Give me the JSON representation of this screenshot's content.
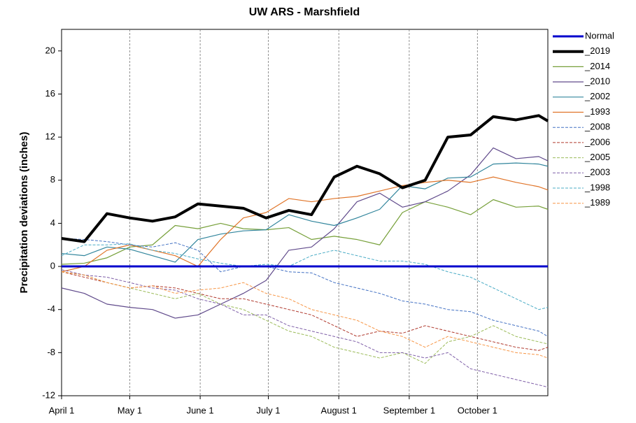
{
  "chart_data": {
    "type": "line",
    "title": "UW ARS - Marshfield",
    "y_label": "Precipitation deviations (inches)",
    "x": [
      0,
      10,
      20,
      30,
      40,
      50,
      60,
      70,
      80,
      90,
      100,
      110,
      120,
      130,
      140,
      150,
      160,
      170,
      180,
      190,
      200,
      210,
      214
    ],
    "xlim": [
      0,
      214
    ],
    "xticks": [
      {
        "value": 0,
        "label": "April 1"
      },
      {
        "value": 30,
        "label": "May 1"
      },
      {
        "value": 61,
        "label": "June 1"
      },
      {
        "value": 91,
        "label": "July 1"
      },
      {
        "value": 122,
        "label": "August 1"
      },
      {
        "value": 153,
        "label": "September 1"
      },
      {
        "value": 183,
        "label": "October 1"
      }
    ],
    "ylim": [
      -12,
      22
    ],
    "yticks": [
      -12,
      -8,
      -4,
      0,
      4,
      8,
      12,
      16,
      20
    ],
    "x_grid": true,
    "legend": "right",
    "series": [
      {
        "name": "Normal",
        "color": "#0000cc",
        "width": 3,
        "dash": false,
        "values": [
          0,
          0,
          0,
          0,
          0,
          0,
          0,
          0,
          0,
          0,
          0,
          0,
          0,
          0,
          0,
          0,
          0,
          0,
          0,
          0,
          0,
          0,
          0
        ]
      },
      {
        "name": "_2019",
        "color": "#000000",
        "width": 4,
        "dash": false,
        "values": [
          2.6,
          2.3,
          4.9,
          4.5,
          4.2,
          4.6,
          5.8,
          5.6,
          5.4,
          4.5,
          5.2,
          4.8,
          8.3,
          9.3,
          8.6,
          7.3,
          8,
          12,
          12.2,
          13.9,
          13.6,
          14,
          13.5
        ]
      },
      {
        "name": "_2014",
        "color": "#77a03a",
        "width": 1.2,
        "dash": false,
        "values": [
          0.2,
          0.3,
          0.8,
          1.8,
          2,
          3.8,
          3.5,
          4,
          3.5,
          3.4,
          3.6,
          2.5,
          2.8,
          2.5,
          2,
          5,
          6,
          5.5,
          4.8,
          6.2,
          5.5,
          5.6,
          5.3
        ]
      },
      {
        "name": "_2010",
        "color": "#604a8b",
        "width": 1.2,
        "dash": false,
        "values": [
          -2,
          -2.5,
          -3.5,
          -3.8,
          -4,
          -4.8,
          -4.5,
          -3.5,
          -2.5,
          -1.3,
          1.5,
          1.8,
          3.5,
          6,
          6.8,
          5.5,
          6,
          7,
          8.5,
          11,
          10,
          10.2,
          9.8
        ]
      },
      {
        "name": "_2002",
        "color": "#31859c",
        "width": 1.2,
        "dash": false,
        "values": [
          1.2,
          1,
          1.8,
          1.6,
          1,
          0.4,
          2.5,
          3,
          3.3,
          3.4,
          4.8,
          4.2,
          3.8,
          4.5,
          5.3,
          7.5,
          7.2,
          8.2,
          8.3,
          9.5,
          9.6,
          9.5,
          9.3
        ]
      },
      {
        "name": "_1993",
        "color": "#e07428",
        "width": 1.2,
        "dash": false,
        "values": [
          -0.5,
          0,
          1.5,
          2,
          1.5,
          1,
          0,
          2.5,
          4.5,
          5,
          6.3,
          6,
          6.3,
          6.5,
          7,
          7.5,
          7.8,
          8,
          7.8,
          8.3,
          7.8,
          7.4,
          7.1
        ]
      },
      {
        "name": "_2008",
        "color": "#4472c4",
        "width": 1,
        "dash": true,
        "values": [
          2.6,
          2.5,
          2.3,
          2,
          1.8,
          2.2,
          1.5,
          -0.5,
          0,
          0,
          -0.5,
          -0.6,
          -1.5,
          -2,
          -2.5,
          -3.2,
          -3.5,
          -4,
          -4.2,
          -5,
          -5.5,
          -6,
          -6.5
        ]
      },
      {
        "name": "_2006",
        "color": "#b03a2e",
        "width": 1,
        "dash": true,
        "values": [
          -0.5,
          -1,
          -1.5,
          -2,
          -1.8,
          -2,
          -2.5,
          -3,
          -3,
          -3.5,
          -4,
          -4.5,
          -5.5,
          -6.5,
          -6,
          -6.2,
          -5.5,
          -6,
          -6.5,
          -7,
          -7.5,
          -7.8,
          -7.5
        ]
      },
      {
        "name": "_2005",
        "color": "#9bbb59",
        "width": 1,
        "dash": true,
        "values": [
          -0.5,
          -0.8,
          -1.5,
          -2,
          -2.5,
          -3,
          -2.5,
          -3.5,
          -4,
          -5,
          -6,
          -6.5,
          -7.5,
          -8,
          -8.5,
          -8,
          -9,
          -7,
          -6.5,
          -5.5,
          -6.5,
          -7,
          -7.2
        ]
      },
      {
        "name": "_2003",
        "color": "#7f5fa8",
        "width": 1,
        "dash": true,
        "values": [
          -0.3,
          -0.8,
          -1,
          -1.5,
          -2,
          -2.2,
          -3,
          -3.5,
          -4.5,
          -4.5,
          -5.5,
          -6,
          -6.5,
          -7,
          -8,
          -8,
          -8.5,
          -8,
          -9.5,
          -10,
          -10.5,
          -11,
          -11.2
        ]
      },
      {
        "name": "_1998",
        "color": "#4bacc6",
        "width": 1,
        "dash": true,
        "values": [
          1,
          2,
          2,
          2.1,
          1.5,
          1.2,
          0.7,
          0.3,
          0,
          0.2,
          0,
          1,
          1.5,
          1,
          0.5,
          0.5,
          0.2,
          -0.5,
          -1,
          -2,
          -3,
          -4,
          -3.8
        ]
      },
      {
        "name": "_1989",
        "color": "#f79646",
        "width": 1,
        "dash": true,
        "values": [
          -0.5,
          -0.8,
          -1.5,
          -2,
          -1.8,
          -2.5,
          -2.2,
          -2,
          -1.5,
          -2.5,
          -3,
          -4,
          -4.5,
          -5,
          -6,
          -6.5,
          -7.5,
          -6.5,
          -7,
          -7.5,
          -8,
          -8.2,
          -8.5
        ]
      }
    ]
  }
}
